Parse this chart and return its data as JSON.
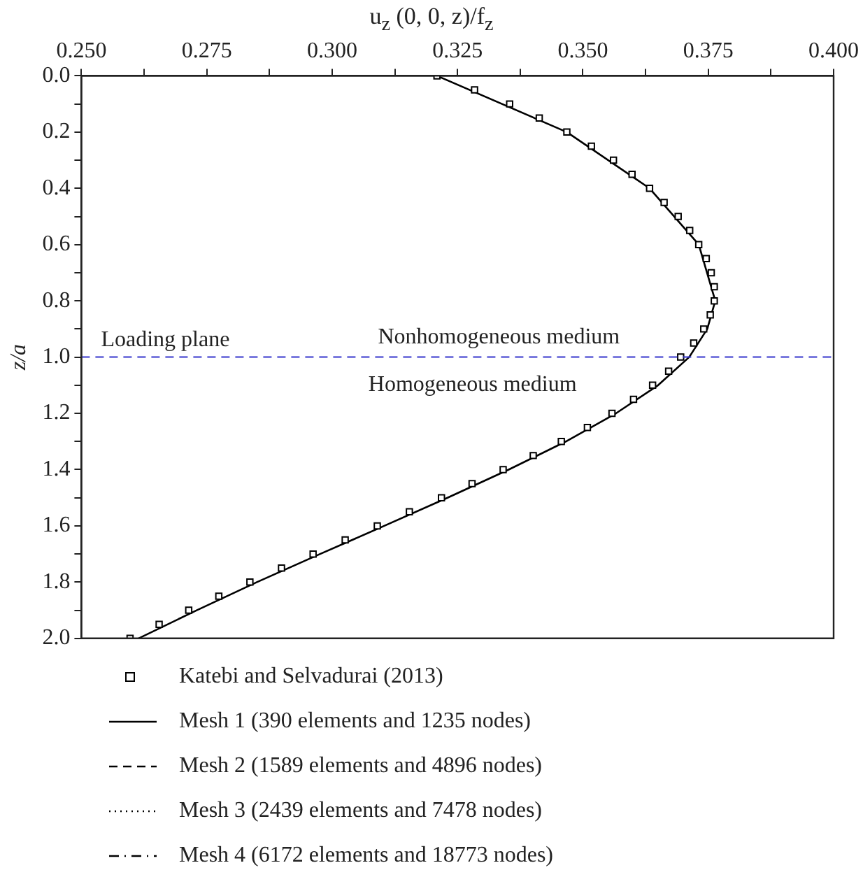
{
  "chart_data": {
    "type": "line",
    "xlabel": "u$_{z}$ (0, 0, z)/f$_{z}$",
    "ylabel": "z/a",
    "xlim": [
      0.25,
      0.4
    ],
    "xticks": [
      {
        "value": 0.25,
        "label": "0.250"
      },
      {
        "value": 0.2625,
        "label": null
      },
      {
        "value": 0.275,
        "label": "0.275"
      },
      {
        "value": 0.2875,
        "label": null
      },
      {
        "value": 0.3,
        "label": "0.300"
      },
      {
        "value": 0.3125,
        "label": null
      },
      {
        "value": 0.325,
        "label": "0.325"
      },
      {
        "value": 0.3375,
        "label": null
      },
      {
        "value": 0.35,
        "label": "0.350"
      },
      {
        "value": 0.3625,
        "label": null
      },
      {
        "value": 0.375,
        "label": "0.375"
      },
      {
        "value": 0.3875,
        "label": null
      },
      {
        "value": 0.4,
        "label": "0.400"
      }
    ],
    "ylim": [
      2.0,
      0.0
    ],
    "yticks": [
      {
        "value": 0,
        "label": "0.0"
      },
      {
        "value": 0.1,
        "label": null
      },
      {
        "value": 0.2,
        "label": "0.2"
      },
      {
        "value": 0.3,
        "label": null
      },
      {
        "value": 0.4,
        "label": "0.4"
      },
      {
        "value": 0.5,
        "label": null
      },
      {
        "value": 0.6,
        "label": "0.6"
      },
      {
        "value": 0.7,
        "label": null
      },
      {
        "value": 0.8,
        "label": "0.8"
      },
      {
        "value": 0.9,
        "label": null
      },
      {
        "value": 1.0,
        "label": "1.0"
      },
      {
        "value": 1.1,
        "label": null
      },
      {
        "value": 1.2,
        "label": "1.2"
      },
      {
        "value": 1.3,
        "label": null
      },
      {
        "value": 1.4,
        "label": "1.4"
      },
      {
        "value": 1.5,
        "label": null
      },
      {
        "value": 1.6,
        "label": "1.6"
      },
      {
        "value": 1.7,
        "label": null
      },
      {
        "value": 1.8,
        "label": "1.8"
      },
      {
        "value": 1.9,
        "label": null
      },
      {
        "value": 2.0,
        "label": "2.0"
      }
    ],
    "grid": false,
    "legend": "bottom",
    "series": [
      {
        "name": "Katebi and Selvadurai (2013)",
        "type": "scatter",
        "marker": "square",
        "color": "#000000",
        "x": [
          0.3209,
          0.3284,
          0.3354,
          0.3413,
          0.3468,
          0.3517,
          0.3561,
          0.3598,
          0.3633,
          0.3662,
          0.369,
          0.3713,
          0.3731,
          0.3746,
          0.3756,
          0.3762,
          0.3762,
          0.3754,
          0.3741,
          0.3721,
          0.3695,
          0.3671,
          0.3639,
          0.3601,
          0.3558,
          0.3509,
          0.3457,
          0.3401,
          0.3341,
          0.3279,
          0.3218,
          0.3154,
          0.309,
          0.3026,
          0.2962,
          0.2899,
          0.2836,
          0.2774,
          0.2714,
          0.2655,
          0.2597
        ],
        "values": [
          0,
          0.05,
          0.1,
          0.15,
          0.2,
          0.25,
          0.3,
          0.35,
          0.4,
          0.45,
          0.5,
          0.55,
          0.6,
          0.65,
          0.7,
          0.75,
          0.8,
          0.85,
          0.9,
          0.95,
          1.0,
          1.05,
          1.1,
          1.15,
          1.2,
          1.25,
          1.3,
          1.35,
          1.4,
          1.45,
          1.5,
          1.55,
          1.6,
          1.65,
          1.7,
          1.75,
          1.8,
          1.85,
          1.9,
          1.95,
          2.0
        ]
      },
      {
        "name": "Mesh 1 (390 elements and 1235 nodes)",
        "type": "line",
        "line_style": "solid",
        "marker": "none",
        "color": "#000000",
        "x": [
          0.3209,
          0.3468,
          0.3633,
          0.3731,
          0.3764,
          0.3748,
          0.3712,
          0.365,
          0.3566,
          0.3466,
          0.3352,
          0.323,
          0.3104,
          0.2976,
          0.285,
          0.273,
          0.2614
        ],
        "values": [
          0,
          0.2,
          0.4,
          0.6,
          0.8,
          0.9,
          1.0,
          1.1,
          1.2,
          1.3,
          1.4,
          1.5,
          1.6,
          1.7,
          1.8,
          1.9,
          2.0
        ]
      },
      {
        "name": "Mesh 2 (1589 elements and 4896 nodes)",
        "type": "line",
        "line_style": "dashed",
        "marker": "none",
        "color": "#000000"
      },
      {
        "name": "Mesh 3 (2439 elements and 7478 nodes)",
        "type": "line",
        "line_style": "dotted",
        "marker": "none",
        "color": "#000000"
      },
      {
        "name": "Mesh 4 (6172 elements and 18773 nodes)",
        "type": "line",
        "line_style": "dashdot",
        "marker": "none",
        "color": "#000000"
      }
    ],
    "ref_lines": [
      {
        "axis": "y",
        "value": 1.0,
        "label": "Loading plane",
        "color": "#3333cc",
        "line_style": "dashed"
      }
    ],
    "annotations": [
      "Nonhomogeneous medium",
      "Homogeneous medium"
    ]
  }
}
